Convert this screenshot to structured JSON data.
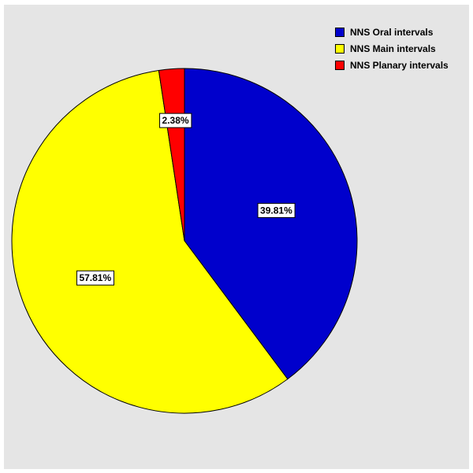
{
  "chart_data": {
    "type": "pie",
    "title": "",
    "categories": [
      "NNS Oral intervals",
      "NNS Main intervals",
      "NNS Planary intervals"
    ],
    "values": [
      39.81,
      57.81,
      2.38
    ],
    "labels": [
      "39.81%",
      "57.81%",
      "2.38%"
    ],
    "colors": [
      "#0000cc",
      "#ffff00",
      "#ff0000"
    ],
    "start": "top",
    "direction": "clockwise",
    "legend": {
      "position": "top-right"
    },
    "background": "#e5e5e5"
  }
}
